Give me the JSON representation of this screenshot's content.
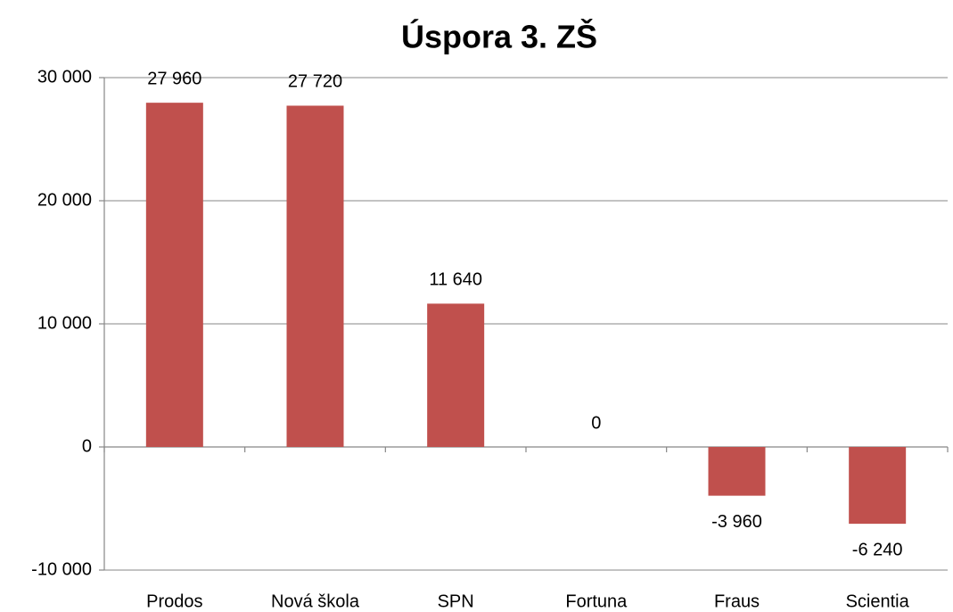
{
  "chart_data": {
    "type": "bar",
    "title": "Úspora 3. ZŠ",
    "categories": [
      "Prodos",
      "Nová škola",
      "SPN",
      "Fortuna",
      "Fraus",
      "Scientia"
    ],
    "values": [
      27960,
      27720,
      11640,
      0,
      -3960,
      -6240
    ],
    "value_labels": [
      "27 960",
      "27 720",
      "11 640",
      "0",
      "-3 960",
      "-6 240"
    ],
    "color": "#c0504d",
    "ylim": [
      -10000,
      30000
    ],
    "yticks": [
      {
        "value": -10000,
        "label": "-10 000"
      },
      0,
      {
        "value": 10000,
        "label": "10 000"
      },
      {
        "value": 20000,
        "label": "20 000"
      },
      {
        "value": 30000,
        "label": "30 000"
      }
    ],
    "grid": true
  }
}
